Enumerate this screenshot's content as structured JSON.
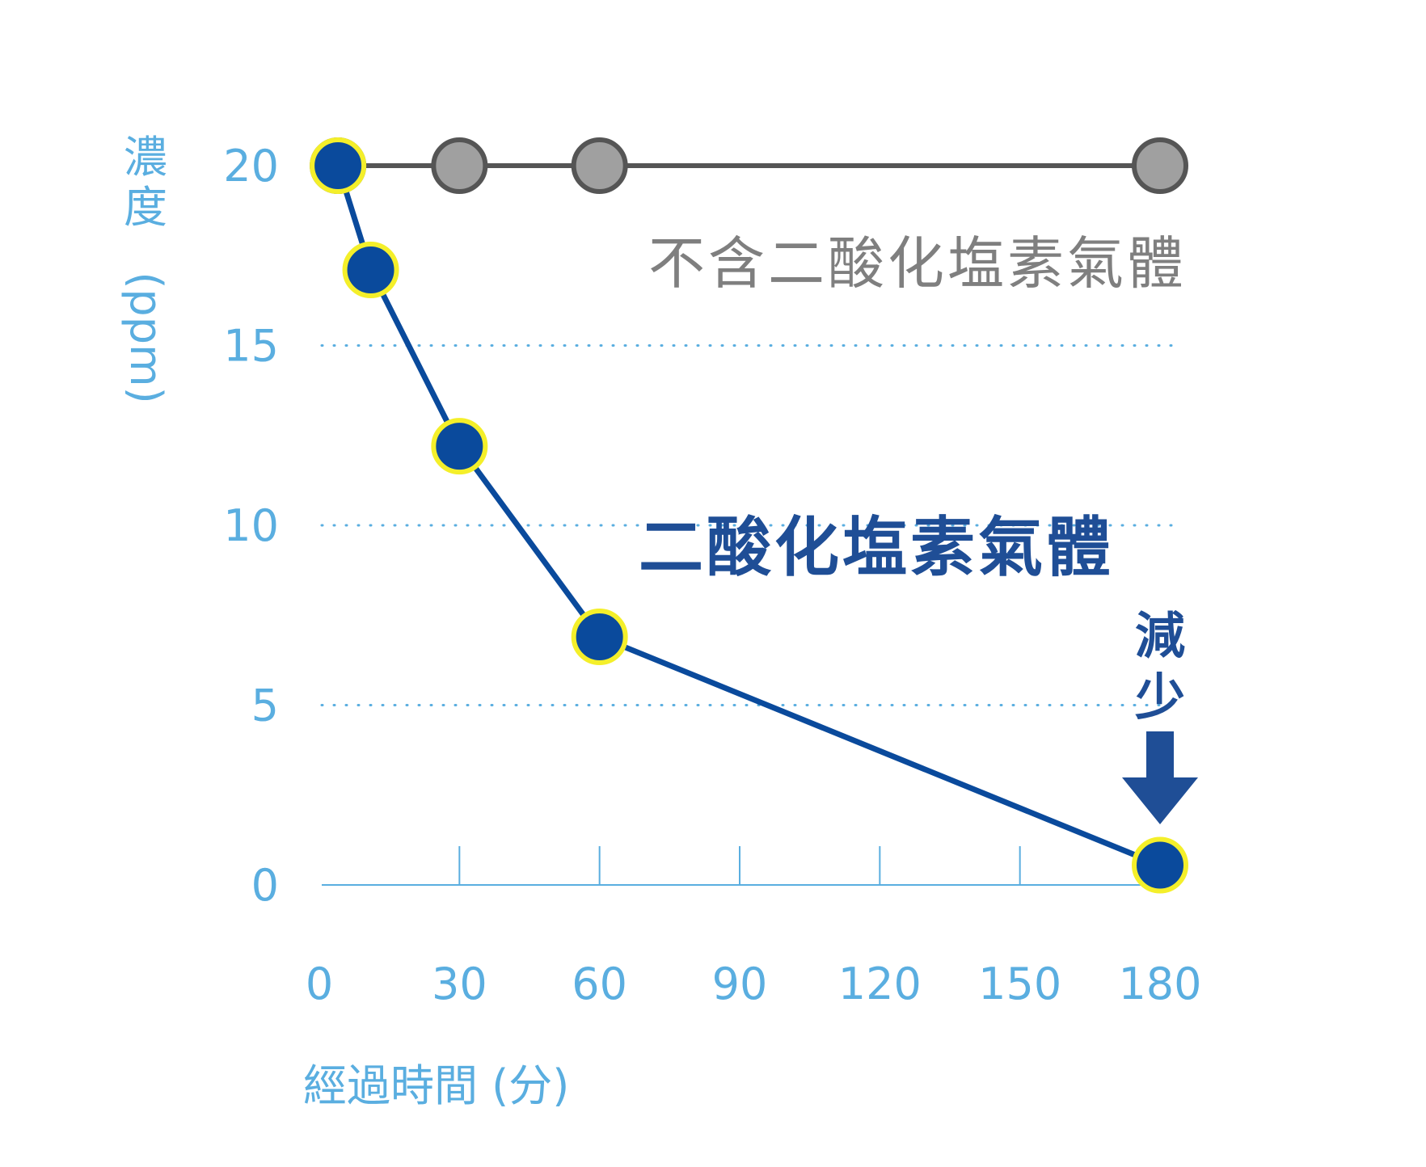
{
  "chart_data": {
    "type": "line",
    "xlabel": "經過時間 (分)",
    "ylabel": "濃度 (ppm)",
    "x_ticks": [
      0,
      30,
      60,
      90,
      120,
      150,
      180
    ],
    "y_ticks": [
      0,
      5,
      10,
      15,
      20
    ],
    "xlim": [
      0,
      180
    ],
    "ylim": [
      0,
      20
    ],
    "grid": "dotted horizontal at 5, 10, 15",
    "series": [
      {
        "name": "不含二酸化塩素氣體",
        "color": "#555555",
        "marker_fill": "#a0a0a0",
        "marker_stroke": "#555555",
        "points": [
          {
            "x": 4,
            "y": 20
          },
          {
            "x": 30,
            "y": 20
          },
          {
            "x": 60,
            "y": 20
          },
          {
            "x": 180,
            "y": 20
          }
        ]
      },
      {
        "name": "二酸化塩素氣體",
        "color": "#0a4a9c",
        "marker_fill": "#0a4a9c",
        "marker_stroke": "#f4ef2a",
        "points": [
          {
            "x": 4,
            "y": 20
          },
          {
            "x": 11,
            "y": 17.1
          },
          {
            "x": 30,
            "y": 12.2
          },
          {
            "x": 60,
            "y": 6.9
          },
          {
            "x": 180,
            "y": 0.55
          }
        ]
      }
    ],
    "annotation": {
      "text": "減少",
      "arrow": "down",
      "color": "#1f4e96"
    }
  }
}
